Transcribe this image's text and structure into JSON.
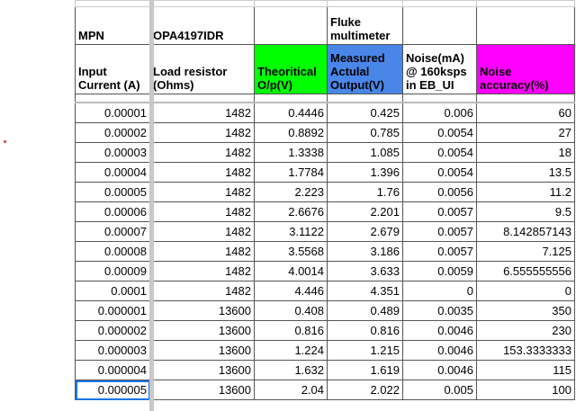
{
  "header1": {
    "mpn_label": "MPN",
    "mpn_value": "OPA4197IDR",
    "fluke": "Fluke multimeter"
  },
  "header2": [
    "Input Current (A)",
    "Load resistor (Ohms)",
    "Theoritical O/p(V)",
    "Measured Actulal Output(V)",
    "Noise(mA) @ 160ksps in EB_UI",
    "Noise accuracy(%)"
  ],
  "colors": {
    "theoretical": "#00ff00",
    "measured": "#4a86e8",
    "accuracy": "#ff00ff",
    "selection": "#1a73e8"
  },
  "rows": [
    [
      "0.00001",
      "1482",
      "0.4446",
      "0.425",
      "0.006",
      "60"
    ],
    [
      "0.00002",
      "1482",
      "0.8892",
      "0.785",
      "0.0054",
      "27"
    ],
    [
      "0.00003",
      "1482",
      "1.3338",
      "1.085",
      "0.0054",
      "18"
    ],
    [
      "0.00004",
      "1482",
      "1.7784",
      "1.396",
      "0.0054",
      "13.5"
    ],
    [
      "0.00005",
      "1482",
      "2.223",
      "1.76",
      "0.0056",
      "11.2"
    ],
    [
      "0.00006",
      "1482",
      "2.6676",
      "2.201",
      "0.0057",
      "9.5"
    ],
    [
      "0.00007",
      "1482",
      "3.1122",
      "2.679",
      "0.0057",
      "8.142857143"
    ],
    [
      "0.00008",
      "1482",
      "3.5568",
      "3.186",
      "0.0057",
      "7.125"
    ],
    [
      "0.00009",
      "1482",
      "4.0014",
      "3.633",
      "0.0059",
      "6.555555556"
    ],
    [
      "0.0001",
      "1482",
      "4.446",
      "4.351",
      "0",
      "0"
    ],
    [
      "0.000001",
      "13600",
      "0.408",
      "0.489",
      "0.0035",
      "350"
    ],
    [
      "0.000002",
      "13600",
      "0.816",
      "0.816",
      "0.0046",
      "230"
    ],
    [
      "0.000003",
      "13600",
      "1.224",
      "1.215",
      "0.0046",
      "153.3333333"
    ],
    [
      "0.000004",
      "13600",
      "1.632",
      "1.619",
      "0.0046",
      "115"
    ],
    [
      "0.000005",
      "13600",
      "2.04",
      "2.022",
      "0.005",
      "100"
    ]
  ]
}
